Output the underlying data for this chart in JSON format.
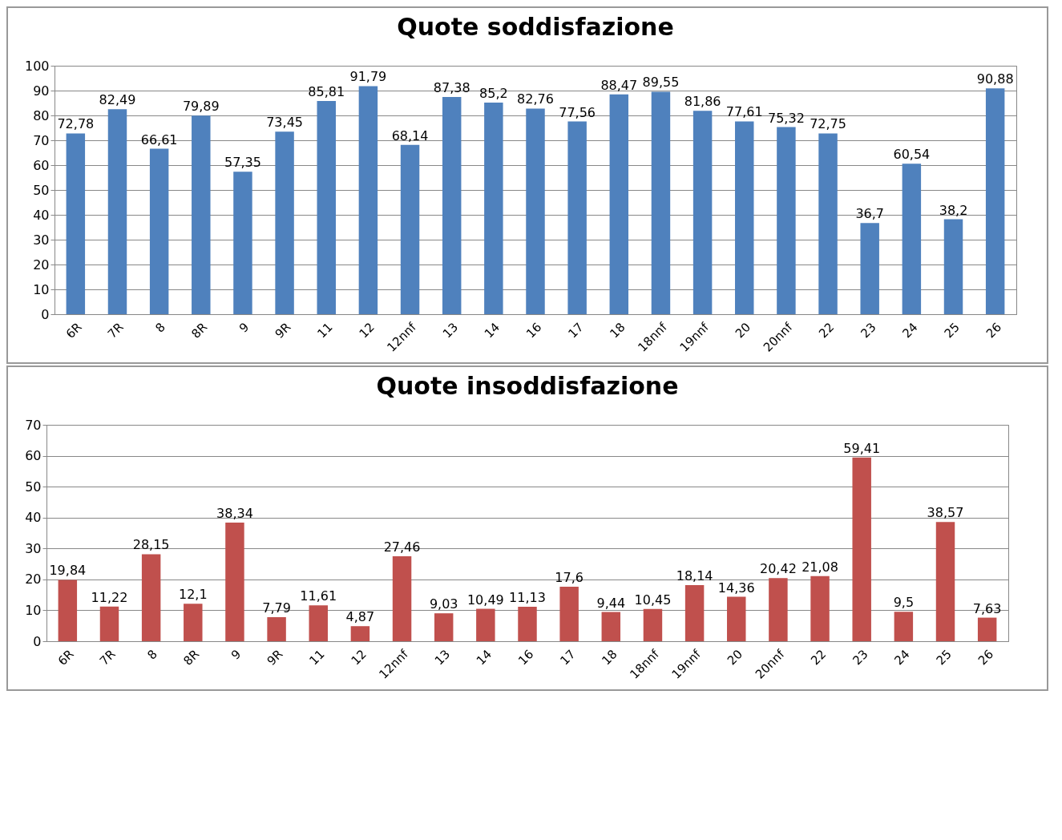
{
  "chart_data": [
    {
      "type": "bar",
      "title": "Quote soddisfazione",
      "categories": [
        "6R",
        "7R",
        "8",
        "8R",
        "9",
        "9R",
        "11",
        "12",
        "12nnf",
        "13",
        "14",
        "16",
        "17",
        "18",
        "18nnf",
        "19nnf",
        "20",
        "20nnf",
        "22",
        "23",
        "24",
        "25",
        "26"
      ],
      "values": [
        72.78,
        82.49,
        66.61,
        79.89,
        57.35,
        73.45,
        85.81,
        91.79,
        68.14,
        87.38,
        85.2,
        82.76,
        77.56,
        88.47,
        89.55,
        81.86,
        77.61,
        75.32,
        72.75,
        36.7,
        60.54,
        38.2,
        90.88
      ],
      "value_labels": [
        "72,78",
        "82,49",
        "66,61",
        "79,89",
        "57,35",
        "73,45",
        "85,81",
        "91,79",
        "68,14",
        "87,38",
        "85,2",
        "82,76",
        "77,56",
        "88,47",
        "89,55",
        "81,86",
        "77,61",
        "75,32",
        "72,75",
        "36,7",
        "60,54",
        "38,2",
        "90,88"
      ],
      "color": "#4f81bd",
      "ylim": [
        0,
        100
      ],
      "yticks": [
        0,
        10,
        20,
        30,
        40,
        50,
        60,
        70,
        80,
        90,
        100
      ],
      "grid": "y"
    },
    {
      "type": "bar",
      "title": "Quote insoddisfazione",
      "categories": [
        "6R",
        "7R",
        "8",
        "8R",
        "9",
        "9R",
        "11",
        "12",
        "12nnf",
        "13",
        "14",
        "16",
        "17",
        "18",
        "18nnf",
        "19nnf",
        "20",
        "20nnf",
        "22",
        "23",
        "24",
        "25",
        "26"
      ],
      "values": [
        19.84,
        11.22,
        28.15,
        12.1,
        38.34,
        7.79,
        11.61,
        4.87,
        27.46,
        9.03,
        10.49,
        11.13,
        17.6,
        9.44,
        10.45,
        18.14,
        14.36,
        20.42,
        21.08,
        59.41,
        9.5,
        38.57,
        7.63
      ],
      "value_labels": [
        "19,84",
        "11,22",
        "28,15",
        "12,1",
        "38,34",
        "7,79",
        "11,61",
        "4,87",
        "27,46",
        "9,03",
        "10,49",
        "11,13",
        "17,6",
        "9,44",
        "10,45",
        "18,14",
        "14,36",
        "20,42",
        "21,08",
        "59,41",
        "9,5",
        "38,57",
        "7,63"
      ],
      "color": "#c0504d",
      "ylim": [
        0,
        70
      ],
      "yticks": [
        0,
        10,
        20,
        30,
        40,
        50,
        60,
        70
      ],
      "grid": "y"
    }
  ]
}
